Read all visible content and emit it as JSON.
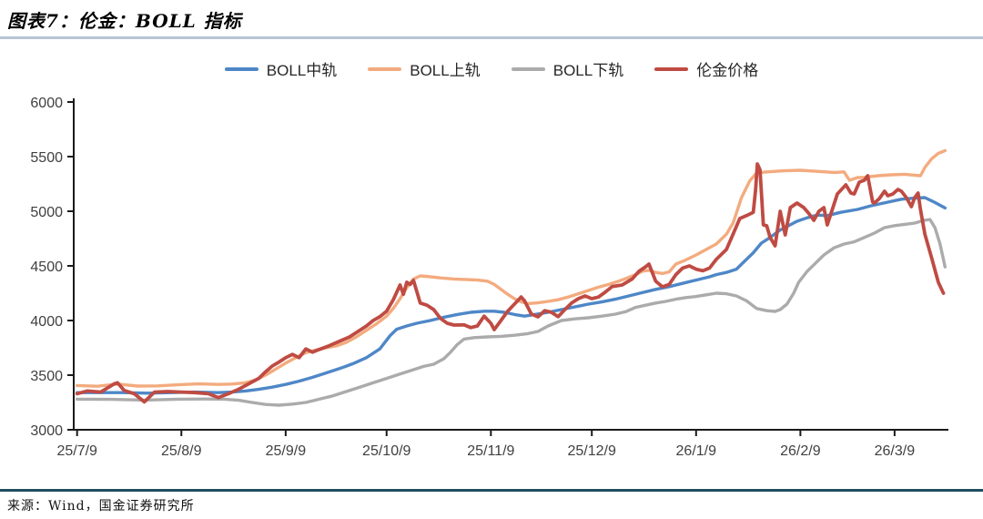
{
  "header": {
    "title": "图表7：伦金：BOLL 指标"
  },
  "footer": {
    "source": "来源：Wind，国金证券研究所"
  },
  "colors": {
    "title_rule": "#b6c5d6",
    "footer_rule": "#1f4e5f",
    "axis": "#1a1a1a",
    "tick_text": "#404040"
  },
  "chart_data": {
    "type": "line",
    "title": "伦金 BOLL 指标",
    "x_unit": "days since 25/7/9",
    "x_range_days": [
      -1,
      259
    ],
    "ylim": [
      3000,
      6000
    ],
    "yticks": [
      3000,
      3500,
      4000,
      4500,
      5000,
      5500,
      6000
    ],
    "xticks": [
      {
        "day": 0,
        "label": "25/7/9"
      },
      {
        "day": 31,
        "label": "25/8/9"
      },
      {
        "day": 62,
        "label": "25/9/9"
      },
      {
        "day": 92,
        "label": "25/10/9"
      },
      {
        "day": 123,
        "label": "25/11/9"
      },
      {
        "day": 153,
        "label": "25/12/9"
      },
      {
        "day": 184,
        "label": "26/1/9"
      },
      {
        "day": 215,
        "label": "26/2/9"
      },
      {
        "day": 243,
        "label": "26/3/9"
      }
    ],
    "legend_position": "top-center",
    "grid": false,
    "series": [
      {
        "name": "BOLL中轨",
        "color": "#4e87c7",
        "x": [
          0,
          7,
          14,
          21,
          28,
          35,
          42,
          46,
          50,
          54,
          58,
          62,
          66,
          70,
          74,
          78,
          82,
          86,
          90,
          93,
          95,
          98,
          101,
          105,
          109,
          113,
          117,
          121,
          124,
          127,
          130,
          133,
          136,
          140,
          144,
          148,
          152,
          156,
          160,
          164,
          168,
          172,
          176,
          180,
          184,
          188,
          190,
          193,
          196,
          198,
          201,
          203.4,
          206,
          208.8,
          211,
          214,
          217,
          220,
          223,
          227,
          232,
          236,
          241,
          245,
          249,
          252,
          255,
          258
        ],
        "y": [
          3340,
          3340,
          3340,
          3335,
          3340,
          3345,
          3340,
          3345,
          3355,
          3370,
          3390,
          3415,
          3445,
          3480,
          3520,
          3560,
          3605,
          3660,
          3740,
          3860,
          3920,
          3950,
          3975,
          4000,
          4030,
          4055,
          4075,
          4085,
          4085,
          4075,
          4055,
          4040,
          4055,
          4075,
          4100,
          4125,
          4150,
          4170,
          4195,
          4225,
          4255,
          4285,
          4310,
          4340,
          4370,
          4400,
          4420,
          4440,
          4470,
          4530,
          4620,
          4708,
          4760,
          4825,
          4860,
          4908,
          4940,
          4965,
          4960,
          4990,
          5017,
          5050,
          5083,
          5110,
          5120,
          5125,
          5080,
          5030
        ]
      },
      {
        "name": "BOLL上轨",
        "color": "#f3ab7e",
        "x": [
          0,
          6,
          12,
          18,
          24,
          30,
          36,
          42,
          46,
          50,
          53,
          56,
          59,
          62,
          65,
          68,
          71,
          74,
          77,
          80,
          83,
          86,
          89,
          92,
          94,
          96,
          98,
          100,
          102,
          105,
          108,
          112,
          116,
          119,
          122,
          124,
          126,
          128,
          130,
          132,
          134,
          137,
          140,
          143,
          146,
          149,
          152,
          155,
          158,
          161,
          164,
          166,
          168,
          170,
          172,
          174,
          176,
          178,
          181,
          184,
          187,
          190,
          193,
          195,
          197.5,
          200,
          202,
          205,
          210,
          215,
          220,
          225,
          228,
          229.6,
          232,
          234,
          238,
          242,
          246,
          249,
          250.7,
          252,
          254,
          256,
          258
        ],
        "y": [
          3405,
          3398,
          3418,
          3400,
          3402,
          3412,
          3420,
          3415,
          3418,
          3430,
          3455,
          3500,
          3555,
          3610,
          3660,
          3705,
          3730,
          3750,
          3767,
          3800,
          3850,
          3910,
          3970,
          4040,
          4110,
          4200,
          4300,
          4380,
          4408,
          4400,
          4390,
          4380,
          4374,
          4370,
          4360,
          4330,
          4285,
          4240,
          4200,
          4170,
          4155,
          4162,
          4175,
          4190,
          4215,
          4245,
          4275,
          4305,
          4330,
          4360,
          4395,
          4420,
          4450,
          4460,
          4440,
          4430,
          4445,
          4517,
          4555,
          4600,
          4650,
          4700,
          4790,
          4892,
          5125,
          5280,
          5350,
          5360,
          5370,
          5375,
          5365,
          5355,
          5360,
          5283,
          5308,
          5310,
          5325,
          5333,
          5338,
          5330,
          5325,
          5400,
          5480,
          5530,
          5555
        ]
      },
      {
        "name": "BOLL下轨",
        "color": "#ababab",
        "x": [
          0,
          10,
          20,
          30,
          38,
          44,
          48,
          52,
          56,
          60,
          64,
          68,
          72,
          76,
          80,
          84,
          88,
          92,
          96,
          100,
          103,
          106,
          109,
          111,
          113,
          115,
          118,
          122,
          126,
          130,
          134,
          137,
          140,
          144,
          148,
          152,
          156,
          160,
          163,
          166,
          169,
          172,
          175,
          178,
          181,
          184,
          187,
          190,
          193,
          196,
          199,
          202,
          205,
          207.5,
          209,
          211,
          213,
          214.5,
          217,
          219,
          222,
          225,
          228,
          231,
          234,
          237,
          240,
          243,
          246,
          249,
          251.5,
          253.5,
          255,
          256.5,
          257.5,
          258
        ],
        "y": [
          3280,
          3278,
          3272,
          3280,
          3282,
          3280,
          3270,
          3250,
          3232,
          3225,
          3235,
          3250,
          3280,
          3310,
          3350,
          3390,
          3430,
          3470,
          3510,
          3550,
          3580,
          3600,
          3650,
          3710,
          3780,
          3830,
          3843,
          3850,
          3855,
          3865,
          3880,
          3900,
          3950,
          4000,
          4015,
          4025,
          4040,
          4058,
          4080,
          4120,
          4140,
          4160,
          4175,
          4195,
          4210,
          4220,
          4235,
          4250,
          4245,
          4225,
          4180,
          4110,
          4090,
          4083,
          4100,
          4150,
          4250,
          4350,
          4450,
          4510,
          4600,
          4665,
          4700,
          4720,
          4760,
          4800,
          4850,
          4868,
          4880,
          4892,
          4915,
          4925,
          4850,
          4700,
          4560,
          4490
        ]
      },
      {
        "name": "伦金价格",
        "color": "#bf4b43",
        "x": [
          0,
          3,
          7,
          11,
          12,
          14,
          17,
          20,
          23,
          27,
          31,
          35,
          39,
          42,
          45,
          48,
          51,
          54,
          56,
          58,
          60,
          62,
          64,
          66,
          68,
          70,
          72,
          75,
          78,
          81,
          84,
          86,
          88,
          90,
          92,
          94,
          96,
          97,
          98,
          99,
          100,
          102,
          104,
          106,
          108,
          110,
          112,
          115,
          117,
          119,
          121,
          123,
          124,
          126,
          128,
          130,
          132,
          133,
          135,
          137,
          139,
          141,
          143,
          145,
          147,
          149,
          151,
          153,
          155,
          157,
          159,
          162,
          165,
          167,
          169,
          170,
          172,
          174,
          176,
          178,
          180,
          182,
          184,
          186,
          188,
          190,
          193,
          195,
          197,
          199,
          201,
          201.7,
          202.2,
          203,
          204,
          205,
          206,
          207.5,
          209,
          210.5,
          212,
          214,
          216,
          217.5,
          219,
          220.5,
          222,
          223,
          226,
          228.5,
          230,
          231,
          232.5,
          234,
          235,
          236.5,
          237,
          238.5,
          240,
          241,
          242.5,
          244,
          245,
          246.5,
          248,
          249,
          250,
          250.7,
          252,
          254,
          256,
          257.5
        ],
        "y": [
          3330,
          3355,
          3345,
          3420,
          3430,
          3360,
          3330,
          3255,
          3345,
          3350,
          3345,
          3340,
          3330,
          3295,
          3330,
          3370,
          3420,
          3470,
          3530,
          3583,
          3620,
          3660,
          3690,
          3660,
          3740,
          3710,
          3735,
          3770,
          3810,
          3850,
          3910,
          3950,
          4000,
          4035,
          4085,
          4190,
          4325,
          4240,
          4350,
          4330,
          4367,
          4160,
          4140,
          4100,
          4020,
          3975,
          3958,
          3960,
          3935,
          3950,
          4040,
          3975,
          3917,
          4000,
          4085,
          4150,
          4215,
          4180,
          4060,
          4033,
          4090,
          4075,
          4035,
          4100,
          4160,
          4200,
          4225,
          4200,
          4215,
          4260,
          4310,
          4325,
          4380,
          4450,
          4492,
          4517,
          4360,
          4308,
          4330,
          4420,
          4480,
          4500,
          4470,
          4455,
          4480,
          4560,
          4650,
          4790,
          4933,
          4960,
          4990,
          5200,
          5433,
          5380,
          4875,
          4867,
          4760,
          4683,
          5000,
          4783,
          5033,
          5075,
          5033,
          4980,
          4917,
          5000,
          5033,
          4875,
          5158,
          5242,
          5167,
          5158,
          5267,
          5283,
          5325,
          5083,
          5075,
          5117,
          5183,
          5142,
          5158,
          5200,
          5183,
          5125,
          5042,
          5125,
          5167,
          5017,
          4792,
          4575,
          4350,
          4250
        ]
      }
    ]
  }
}
